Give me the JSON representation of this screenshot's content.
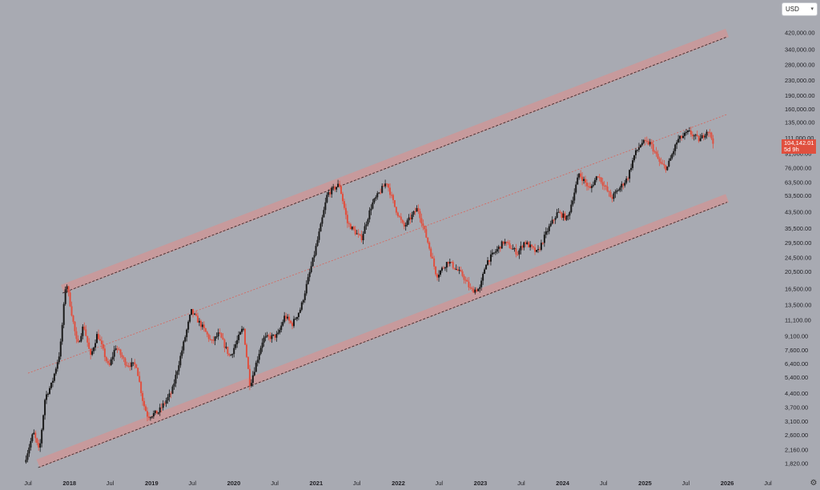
{
  "currency": {
    "selected": "USD"
  },
  "price_label": {
    "value": "104,142.01",
    "countdown": "5d 9h"
  },
  "settings_icon": "gear-icon",
  "colors": {
    "background": "#a8aab2",
    "band_fill": "#c79a9c",
    "up_candle": "#1a1a1a",
    "down_candle": "#e0503f",
    "mid_line": "#d8645a",
    "price_badge": "#e0503f"
  },
  "chart_data": {
    "type": "candlestick",
    "y_scale": "log",
    "ylim": [
      1700,
      500000
    ],
    "y_ticks": [
      "420,000.00",
      "340,000.00",
      "280,000.00",
      "230,000.00",
      "190,000.00",
      "160,000.00",
      "135,000.00",
      "111,000.00",
      "91,000.00",
      "76,000.00",
      "63,500.00",
      "53,500.00",
      "43,500.00",
      "35,500.00",
      "29,500.00",
      "24,500.00",
      "20,500.00",
      "16,500.00",
      "13,500.00",
      "11,100.00",
      "9,100.00",
      "7,600.00",
      "6,400.00",
      "5,400.00",
      "4,400.00",
      "3,700.00",
      "3,100.00",
      "2,600.00",
      "2,160.00",
      "1,820.00"
    ],
    "x_ticks": [
      {
        "label": "Jul",
        "date": "2017-07-01",
        "bold": false
      },
      {
        "label": "2018",
        "date": "2018-01-01",
        "bold": true
      },
      {
        "label": "Jul",
        "date": "2018-07-01",
        "bold": false
      },
      {
        "label": "2019",
        "date": "2019-01-01",
        "bold": true
      },
      {
        "label": "Jul",
        "date": "2019-07-01",
        "bold": false
      },
      {
        "label": "2020",
        "date": "2020-01-01",
        "bold": true
      },
      {
        "label": "Jul",
        "date": "2020-07-01",
        "bold": false
      },
      {
        "label": "2021",
        "date": "2021-01-01",
        "bold": true
      },
      {
        "label": "Jul",
        "date": "2021-07-01",
        "bold": false
      },
      {
        "label": "2022",
        "date": "2022-01-01",
        "bold": true
      },
      {
        "label": "Jul",
        "date": "2022-07-01",
        "bold": false
      },
      {
        "label": "2023",
        "date": "2023-01-01",
        "bold": true
      },
      {
        "label": "Jul",
        "date": "2023-07-01",
        "bold": false
      },
      {
        "label": "2024",
        "date": "2024-01-01",
        "bold": true
      },
      {
        "label": "Jul",
        "date": "2024-07-01",
        "bold": false
      },
      {
        "label": "2025",
        "date": "2025-01-01",
        "bold": true
      },
      {
        "label": "Jul",
        "date": "2025-07-01",
        "bold": false
      },
      {
        "label": "2026",
        "date": "2026-01-01",
        "bold": true
      },
      {
        "label": "Jul",
        "date": "2026-07-01",
        "bold": false
      }
    ],
    "channel": {
      "upper": [
        {
          "date": "2017-12-01",
          "value": 16500
        },
        {
          "date": "2026-01-01",
          "value": 420000
        }
      ],
      "lower": [
        {
          "date": "2017-08-15",
          "value": 1820
        },
        {
          "date": "2026-01-01",
          "value": 52000
        }
      ],
      "mid": [
        {
          "date": "2017-07-01",
          "value": 5700
        },
        {
          "date": "2026-01-01",
          "value": 150000
        }
      ]
    },
    "price_path": [
      {
        "date": "2017-06-15",
        "value": 1850
      },
      {
        "date": "2017-07-25",
        "value": 2700
      },
      {
        "date": "2017-08-20",
        "value": 2100
      },
      {
        "date": "2017-09-15",
        "value": 4200
      },
      {
        "date": "2017-10-15",
        "value": 5000
      },
      {
        "date": "2017-11-20",
        "value": 7500
      },
      {
        "date": "2017-12-17",
        "value": 18500
      },
      {
        "date": "2018-02-05",
        "value": 8000
      },
      {
        "date": "2018-03-05",
        "value": 10500
      },
      {
        "date": "2018-04-05",
        "value": 7000
      },
      {
        "date": "2018-05-05",
        "value": 9400
      },
      {
        "date": "2018-06-25",
        "value": 6100
      },
      {
        "date": "2018-07-25",
        "value": 8000
      },
      {
        "date": "2018-09-10",
        "value": 6400
      },
      {
        "date": "2018-10-25",
        "value": 6300
      },
      {
        "date": "2018-11-25",
        "value": 3900
      },
      {
        "date": "2018-12-15",
        "value": 3300
      },
      {
        "date": "2019-02-01",
        "value": 3500
      },
      {
        "date": "2019-04-01",
        "value": 4500
      },
      {
        "date": "2019-05-20",
        "value": 8000
      },
      {
        "date": "2019-06-26",
        "value": 12500
      },
      {
        "date": "2019-08-15",
        "value": 10200
      },
      {
        "date": "2019-09-25",
        "value": 8400
      },
      {
        "date": "2019-10-27",
        "value": 9400
      },
      {
        "date": "2019-12-15",
        "value": 7000
      },
      {
        "date": "2020-02-12",
        "value": 10200
      },
      {
        "date": "2020-03-13",
        "value": 4900
      },
      {
        "date": "2020-05-10",
        "value": 8800
      },
      {
        "date": "2020-07-15",
        "value": 9200
      },
      {
        "date": "2020-08-15",
        "value": 11800
      },
      {
        "date": "2020-09-15",
        "value": 10500
      },
      {
        "date": "2020-10-25",
        "value": 13000
      },
      {
        "date": "2020-12-25",
        "value": 26000
      },
      {
        "date": "2021-01-20",
        "value": 36000
      },
      {
        "date": "2021-02-20",
        "value": 55000
      },
      {
        "date": "2021-04-14",
        "value": 62000
      },
      {
        "date": "2021-05-20",
        "value": 38000
      },
      {
        "date": "2021-07-20",
        "value": 31000
      },
      {
        "date": "2021-09-05",
        "value": 48000
      },
      {
        "date": "2021-11-10",
        "value": 64000
      },
      {
        "date": "2021-12-15",
        "value": 47000
      },
      {
        "date": "2022-01-25",
        "value": 36000
      },
      {
        "date": "2022-03-28",
        "value": 46000
      },
      {
        "date": "2022-05-15",
        "value": 29000
      },
      {
        "date": "2022-06-20",
        "value": 19500
      },
      {
        "date": "2022-08-10",
        "value": 23500
      },
      {
        "date": "2022-10-15",
        "value": 19500
      },
      {
        "date": "2022-11-20",
        "value": 16200
      },
      {
        "date": "2022-12-30",
        "value": 16600
      },
      {
        "date": "2023-01-25",
        "value": 23000
      },
      {
        "date": "2023-04-15",
        "value": 30000
      },
      {
        "date": "2023-06-15",
        "value": 26000
      },
      {
        "date": "2023-07-15",
        "value": 30000
      },
      {
        "date": "2023-09-10",
        "value": 26000
      },
      {
        "date": "2023-10-25",
        "value": 34500
      },
      {
        "date": "2023-12-10",
        "value": 43500
      },
      {
        "date": "2024-01-22",
        "value": 40000
      },
      {
        "date": "2024-03-14",
        "value": 71000
      },
      {
        "date": "2024-05-01",
        "value": 58000
      },
      {
        "date": "2024-06-05",
        "value": 70000
      },
      {
        "date": "2024-08-05",
        "value": 52000
      },
      {
        "date": "2024-10-15",
        "value": 67000
      },
      {
        "date": "2024-11-15",
        "value": 90000
      },
      {
        "date": "2024-12-17",
        "value": 105000
      },
      {
        "date": "2025-01-25",
        "value": 104000
      },
      {
        "date": "2025-03-10",
        "value": 80000
      },
      {
        "date": "2025-04-08",
        "value": 76000
      },
      {
        "date": "2025-05-25",
        "value": 108000
      },
      {
        "date": "2025-07-14",
        "value": 120000
      },
      {
        "date": "2025-09-01",
        "value": 108000
      },
      {
        "date": "2025-10-06",
        "value": 124000
      },
      {
        "date": "2025-11-03",
        "value": 104142
      }
    ]
  }
}
